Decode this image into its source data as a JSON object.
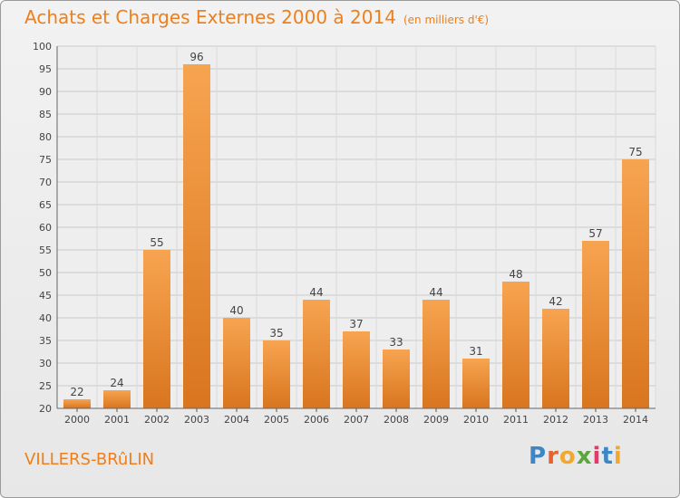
{
  "title": "Achats et Charges Externes 2000 à 2014",
  "unit": "(en milliers d'€)",
  "city": "VILLERS-BRûLIN",
  "logo": {
    "letters": [
      "P",
      "r",
      "o",
      "x",
      "i",
      "t",
      "i"
    ]
  },
  "colors": {
    "bar_light": "#f7a450",
    "bar_dark": "#d9751f",
    "text_accent": "#ee7f1a"
  },
  "chart_data": {
    "type": "bar",
    "categories": [
      "2000",
      "2001",
      "2002",
      "2003",
      "2004",
      "2005",
      "2006",
      "2007",
      "2008",
      "2009",
      "2010",
      "2011",
      "2012",
      "2013",
      "2014"
    ],
    "values": [
      22,
      24,
      55,
      96,
      40,
      35,
      44,
      37,
      33,
      44,
      31,
      48,
      42,
      57,
      75
    ],
    "data_labels": [
      "22",
      "24",
      "55",
      "96",
      "40",
      "35",
      "44",
      "37",
      "33",
      "44",
      "31",
      "48",
      "42",
      "57",
      "75"
    ],
    "title": "Achats et Charges Externes 2000 à 2014",
    "ylim": [
      20,
      100
    ],
    "yticks": [
      "20",
      "25",
      "30",
      "35",
      "40",
      "45",
      "50",
      "55",
      "60",
      "65",
      "70",
      "75",
      "80",
      "85",
      "90",
      "95",
      "100"
    ],
    "ytick_values": [
      20,
      25,
      30,
      35,
      40,
      45,
      50,
      55,
      60,
      65,
      70,
      75,
      80,
      85,
      90,
      95,
      100
    ],
    "grid": true
  }
}
